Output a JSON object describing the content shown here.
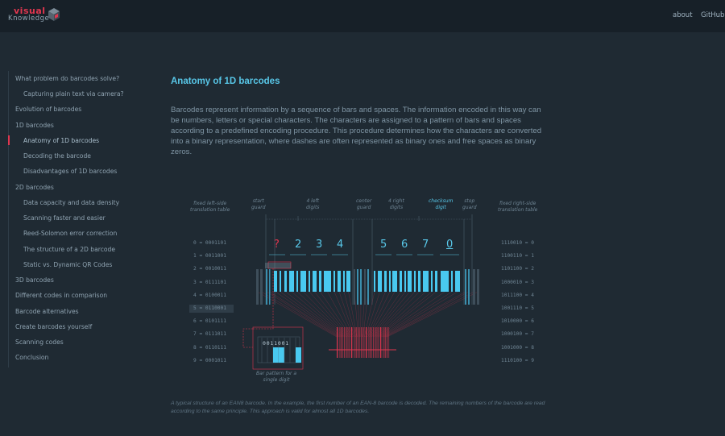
{
  "brand": {
    "line1": "visual",
    "line2": "Knowledge",
    "icon": "cube-icon"
  },
  "nav": [
    {
      "label": "about"
    },
    {
      "label": "GitHub"
    }
  ],
  "sidebar": {
    "items": [
      {
        "label": "What problem do barcodes solve?"
      },
      {
        "label": "Capturing plain text via camera?"
      },
      {
        "label": "Evolution of barcodes"
      },
      {
        "label": "1D barcodes"
      },
      {
        "label": "Anatomy of 1D barcodes"
      },
      {
        "label": "Decoding the barcode"
      },
      {
        "label": "Disadvantages of 1D barcodes"
      },
      {
        "label": "2D barcodes"
      },
      {
        "label": "Data capacity and data density"
      },
      {
        "label": "Scanning faster and easier"
      },
      {
        "label": "Reed-Solomon error correction"
      },
      {
        "label": "The structure of a 2D barcode"
      },
      {
        "label": "Static vs. Dynamic QR Codes"
      },
      {
        "label": "3D barcodes"
      },
      {
        "label": "Different codes in comparison"
      },
      {
        "label": "Barcode alternatives"
      },
      {
        "label": "Create barcodes yourself"
      },
      {
        "label": "Scanning codes"
      },
      {
        "label": "Conclusion"
      }
    ]
  },
  "article": {
    "title": "Anatomy of 1D barcodes",
    "intro": "Barcodes represent information by a sequence of bars and spaces. The information encoded in this way can be numbers, letters or special characters. The characters are assigned to a pattern of bars and spaces according to a predefined encoding procedure. This procedure determines how the characters are converted into a binary representation, where dashes are often represented as binary ones and free spaces as binary zeros.",
    "caption": "A typical structure of an EAN8 barcode. In the example, the first number of an EAN-8 barcode is decoded. The remaining numbers of the barcode are read according to the same principle. This approach is valid for almost all 1D barcodes."
  },
  "diagram": {
    "labels": {
      "left_table": "fixed left-side\ntranslation table",
      "start_guard": "start\nguard",
      "left_digits": "4 left\ndigits",
      "center_guard": "center\nguard",
      "right_digits": "4 right\ndigits",
      "checksum": "checksum\ndigit",
      "stop_guard": "stop\nguard",
      "right_table": "fixed right-side\ntranslation table",
      "pattern": "Bar pattern for a\nsingle digit"
    },
    "digits": [
      "?",
      "2",
      "3",
      "4",
      "5",
      "6",
      "7",
      "0"
    ],
    "left_table": [
      "0 = 0001101",
      "1 = 0011001",
      "2 = 0010011",
      "3 = 0111101",
      "4 = 0100011",
      "5 = 0110001",
      "6 = 0101111",
      "7 = 0111011",
      "8 = 0110111",
      "9 = 0001011"
    ],
    "right_table": [
      "1110010 = 0",
      "1100110 = 1",
      "1101100 = 2",
      "1000010 = 3",
      "1011100 = 4",
      "1001110 = 5",
      "1010000 = 6",
      "1000100 = 7",
      "1001000 = 8",
      "1110100 = 9"
    ],
    "pattern_bits": "0011001",
    "colors": {
      "accent": "#58c7e8",
      "highlight": "#e0364f"
    }
  }
}
